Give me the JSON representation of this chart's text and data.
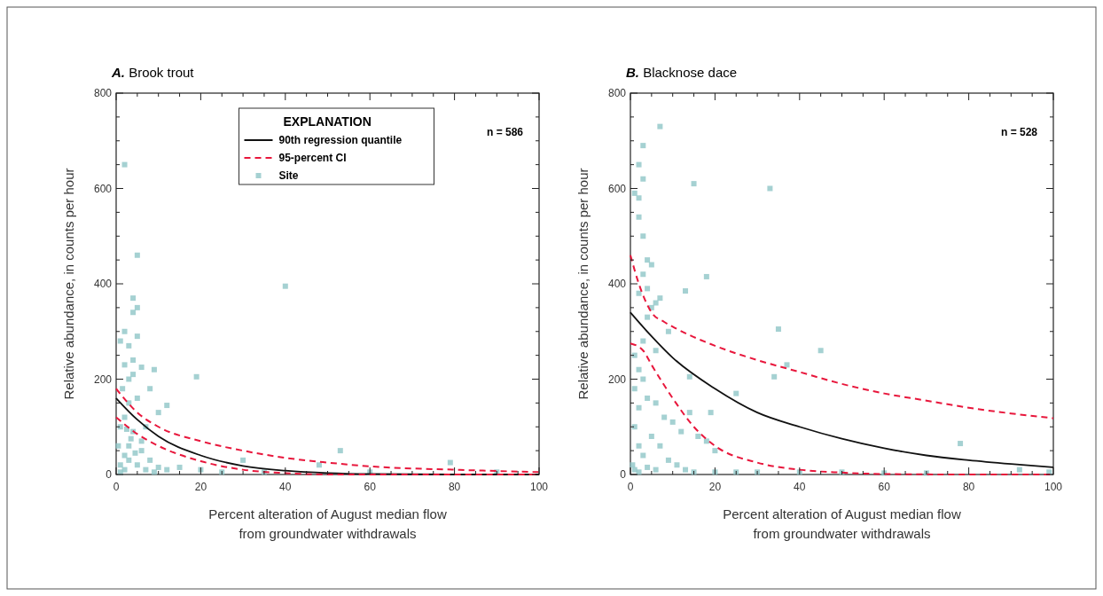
{
  "chart_data": [
    {
      "type": "scatter",
      "title": "A. Brook trout",
      "xlabel": "Percent alteration of August median flow\nfrom groundwater withdrawals",
      "ylabel": "Relative abundance, in counts per hour",
      "legend_title": "EXPLANATION",
      "legend": "top",
      "grid": false,
      "annotations": [
        "n = 586"
      ],
      "xlim": [
        0,
        100
      ],
      "xticks": [
        0,
        {
          "value": 5,
          "label": null
        },
        {
          "value": 10,
          "label": null
        },
        {
          "value": 15,
          "label": null
        },
        20,
        {
          "value": 25,
          "label": null
        },
        {
          "value": 30,
          "label": null
        },
        {
          "value": 35,
          "label": null
        },
        40,
        {
          "value": 45,
          "label": null
        },
        {
          "value": 50,
          "label": null
        },
        {
          "value": 55,
          "label": null
        },
        60,
        {
          "value": 65,
          "label": null
        },
        {
          "value": 70,
          "label": null
        },
        {
          "value": 75,
          "label": null
        },
        80,
        {
          "value": 85,
          "label": null
        },
        {
          "value": 90,
          "label": null
        },
        {
          "value": 95,
          "label": null
        },
        100
      ],
      "ylim": [
        0,
        800
      ],
      "yticks": [
        0,
        {
          "value": 50,
          "label": null
        },
        {
          "value": 100,
          "label": null
        },
        {
          "value": 150,
          "label": null
        },
        200,
        {
          "value": 250,
          "label": null
        },
        {
          "value": 300,
          "label": null
        },
        {
          "value": 350,
          "label": null
        },
        400,
        {
          "value": 450,
          "label": null
        },
        {
          "value": 500,
          "label": null
        },
        {
          "value": 550,
          "label": null
        },
        600,
        {
          "value": 650,
          "label": null
        },
        {
          "value": 700,
          "label": null
        },
        {
          "value": 750,
          "label": null
        },
        800
      ],
      "series": [
        {
          "name": "90th regression quantile",
          "type": "line",
          "marker": "none",
          "color": "#111111",
          "line_style": "solid",
          "x": [
            0,
            5,
            10,
            20,
            30,
            40,
            50,
            60,
            80,
            100
          ],
          "values": [
            160,
            115,
            80,
            40,
            18,
            8,
            3,
            1,
            0,
            0
          ]
        },
        {
          "name": "95-percent CI",
          "type": "line",
          "marker": "none",
          "color": "#e8173c",
          "line_style": "dashed",
          "x": [
            0,
            5,
            10,
            20,
            30,
            40,
            50,
            60,
            80,
            100
          ],
          "values": [
            180,
            130,
            100,
            70,
            50,
            35,
            25,
            17,
            10,
            5
          ]
        },
        {
          "type": "line",
          "marker": "none",
          "color": "#e8173c",
          "line_style": "dashed",
          "x": [
            0,
            5,
            10,
            20,
            30,
            40,
            50,
            60,
            100
          ],
          "values": [
            120,
            85,
            60,
            28,
            10,
            3,
            0,
            0,
            0
          ]
        },
        {
          "name": "Site",
          "marker": "square",
          "color": "#8ec5c7",
          "x": [
            2,
            5,
            4,
            5,
            4,
            2,
            1,
            5,
            3,
            2,
            4,
            6,
            9,
            8,
            5,
            3,
            4,
            19,
            40,
            12,
            10,
            7,
            6,
            3,
            2,
            1,
            15,
            20,
            25,
            30,
            48,
            53,
            79,
            2,
            3,
            1,
            4,
            6,
            8,
            10,
            12,
            35,
            60,
            90,
            1,
            2,
            3,
            5,
            7,
            9,
            0.5,
            1.5,
            2.5,
            3.5,
            4.5
          ],
          "values": [
            650,
            460,
            370,
            350,
            340,
            300,
            280,
            290,
            270,
            230,
            240,
            225,
            220,
            180,
            160,
            200,
            210,
            205,
            395,
            145,
            130,
            100,
            70,
            60,
            40,
            20,
            15,
            10,
            5,
            30,
            20,
            50,
            25,
            120,
            150,
            100,
            90,
            50,
            30,
            15,
            10,
            5,
            5,
            5,
            5,
            10,
            30,
            20,
            10,
            5,
            60,
            180,
            95,
            75,
            45
          ]
        }
      ]
    },
    {
      "type": "scatter",
      "title": "B. Blacknose dace",
      "xlabel": "Percent alteration of August median flow\nfrom groundwater withdrawals",
      "ylabel": "Relative abundance, in counts per hour",
      "grid": false,
      "annotations": [
        "n = 528"
      ],
      "xlim": [
        0,
        100
      ],
      "xticks": [
        0,
        {
          "value": 5,
          "label": null
        },
        {
          "value": 10,
          "label": null
        },
        {
          "value": 15,
          "label": null
        },
        20,
        {
          "value": 25,
          "label": null
        },
        {
          "value": 30,
          "label": null
        },
        {
          "value": 35,
          "label": null
        },
        40,
        {
          "value": 45,
          "label": null
        },
        {
          "value": 50,
          "label": null
        },
        {
          "value": 55,
          "label": null
        },
        60,
        {
          "value": 65,
          "label": null
        },
        {
          "value": 70,
          "label": null
        },
        {
          "value": 75,
          "label": null
        },
        80,
        {
          "value": 85,
          "label": null
        },
        {
          "value": 90,
          "label": null
        },
        {
          "value": 95,
          "label": null
        },
        100
      ],
      "ylim": [
        0,
        800
      ],
      "yticks": [
        0,
        {
          "value": 50,
          "label": null
        },
        {
          "value": 100,
          "label": null
        },
        {
          "value": 150,
          "label": null
        },
        200,
        {
          "value": 250,
          "label": null
        },
        {
          "value": 300,
          "label": null
        },
        {
          "value": 350,
          "label": null
        },
        400,
        {
          "value": 450,
          "label": null
        },
        {
          "value": 500,
          "label": null
        },
        {
          "value": 550,
          "label": null
        },
        600,
        {
          "value": 650,
          "label": null
        },
        {
          "value": 700,
          "label": null
        },
        {
          "value": 750,
          "label": null
        },
        800
      ],
      "series": [
        {
          "type": "line",
          "marker": "none",
          "color": "#111111",
          "line_style": "solid",
          "x": [
            0,
            5,
            10,
            20,
            30,
            40,
            50,
            60,
            70,
            80,
            90,
            100
          ],
          "values": [
            340,
            290,
            245,
            180,
            130,
            100,
            75,
            55,
            40,
            30,
            22,
            15
          ]
        },
        {
          "type": "line",
          "marker": "none",
          "color": "#e8173c",
          "line_style": "dashed",
          "x": [
            0,
            2,
            5,
            8,
            10,
            20,
            30,
            40,
            50,
            60,
            70,
            80,
            90,
            100
          ],
          "values": [
            460,
            400,
            340,
            320,
            310,
            270,
            240,
            215,
            190,
            170,
            155,
            140,
            128,
            118
          ]
        },
        {
          "type": "line",
          "marker": "none",
          "color": "#e8173c",
          "line_style": "dashed",
          "x": [
            0,
            3,
            5,
            10,
            15,
            20,
            30,
            40,
            50,
            60,
            80,
            100
          ],
          "values": [
            275,
            260,
            230,
            160,
            100,
            60,
            25,
            10,
            4,
            1,
            0,
            0
          ]
        },
        {
          "marker": "square",
          "color": "#8ec5c7",
          "x": [
            7,
            3,
            2,
            1,
            3,
            2,
            15,
            33,
            2,
            3,
            4,
            5,
            3,
            18,
            13,
            2,
            4,
            7,
            5,
            4,
            6,
            35,
            9,
            3,
            6,
            45,
            37,
            34,
            14,
            25,
            1,
            2,
            3,
            1,
            4,
            2,
            6,
            8,
            10,
            12,
            14,
            19,
            16,
            18,
            20,
            1,
            2,
            3,
            5,
            7,
            9,
            11,
            13,
            15,
            20,
            25,
            30,
            40,
            50,
            60,
            70,
            78,
            92,
            99,
            0.5,
            1,
            2,
            4,
            6
          ],
          "values": [
            730,
            690,
            650,
            590,
            620,
            580,
            610,
            600,
            540,
            500,
            450,
            440,
            420,
            415,
            385,
            380,
            390,
            370,
            350,
            330,
            360,
            305,
            300,
            280,
            260,
            260,
            230,
            205,
            205,
            170,
            250,
            220,
            200,
            180,
            160,
            140,
            150,
            120,
            110,
            90,
            130,
            130,
            80,
            70,
            50,
            100,
            60,
            40,
            80,
            60,
            30,
            20,
            10,
            5,
            5,
            5,
            5,
            5,
            5,
            3,
            3,
            65,
            10,
            5,
            20,
            10,
            5,
            15,
            10
          ]
        }
      ]
    }
  ]
}
